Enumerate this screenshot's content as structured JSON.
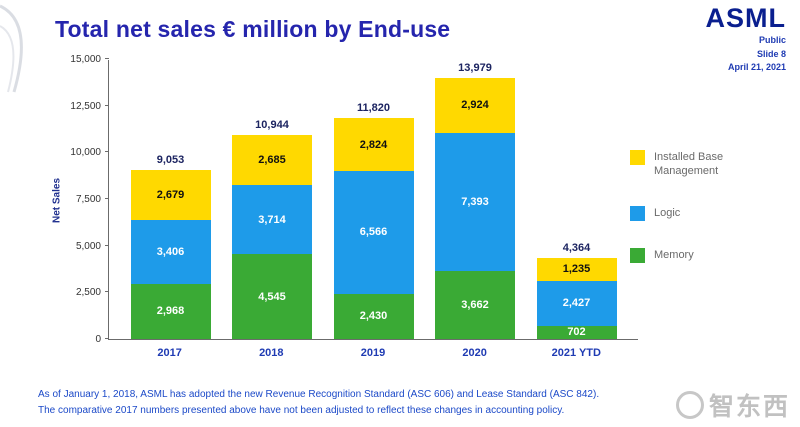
{
  "header": {
    "title": "Total net sales € million by End-use"
  },
  "logo": {
    "text": "ASML"
  },
  "meta": {
    "classification": "Public",
    "slide": "Slide 8",
    "date": "April 21, 2021"
  },
  "chart_data": {
    "type": "bar",
    "stacked": true,
    "title": "Total net sales € million by End-use",
    "xlabel": "",
    "ylabel": "Net Sales",
    "ylim": [
      0,
      15000
    ],
    "yticks": [
      0,
      2500,
      5000,
      7500,
      10000,
      12500,
      15000
    ],
    "grid": false,
    "legend_position": "right",
    "categories": [
      "2017",
      "2018",
      "2019",
      "2020",
      "2021 YTD"
    ],
    "series": [
      {
        "name": "Memory",
        "color": "#3aaa35",
        "label_color": "#ffffff",
        "values": [
          2968,
          4545,
          2430,
          3662,
          702
        ]
      },
      {
        "name": "Logic",
        "color": "#1e9be9",
        "label_color": "#ffffff",
        "values": [
          3406,
          3714,
          6566,
          7393,
          2427
        ]
      },
      {
        "name": "Installed Base Management",
        "color": "#ffd900",
        "label_color": "#111111",
        "values": [
          2679,
          2685,
          2824,
          2924,
          1235
        ]
      }
    ],
    "totals": [
      9053,
      10944,
      11820,
      13979,
      4364
    ]
  },
  "legend": {
    "items": [
      {
        "label": "Installed Base Management",
        "color": "#ffd900"
      },
      {
        "label": "Logic",
        "color": "#1e9be9"
      },
      {
        "label": "Memory",
        "color": "#3aaa35"
      }
    ]
  },
  "footnote": {
    "line1": "As of January 1, 2018, ASML has adopted the new Revenue Recognition Standard (ASC 606) and Lease Standard (ASC 842).",
    "line2": "The comparative 2017 numbers presented above have not been adjusted to reflect these changes in accounting policy."
  },
  "watermark": {
    "text": "智东西"
  }
}
